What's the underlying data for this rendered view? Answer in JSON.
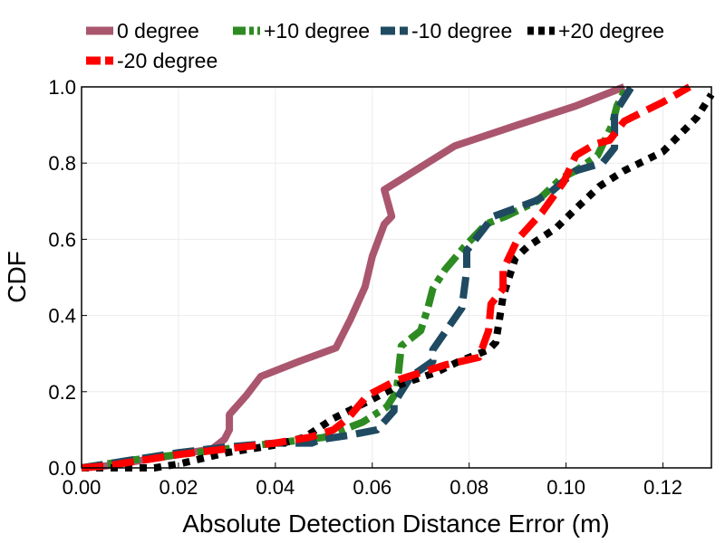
{
  "chart_data": {
    "type": "line",
    "title": "",
    "xlabel": "Absolute Detection Distance Error (m)",
    "ylabel": "CDF",
    "xlim": [
      0.0,
      0.13
    ],
    "ylim": [
      0.0,
      1.0
    ],
    "xticks": [
      "0.00",
      "0.02",
      "0.04",
      "0.06",
      "0.08",
      "0.10",
      "0.12"
    ],
    "yticks": [
      "0.0",
      "0.2",
      "0.4",
      "0.6",
      "0.8",
      "1.0"
    ],
    "grid": true,
    "legend_position": "top",
    "series": [
      {
        "name": "0 degree",
        "color": "#AA566E",
        "style": "solid",
        "x": [
          0.0,
          0.005,
          0.01,
          0.015,
          0.02,
          0.027,
          0.0295,
          0.0305,
          0.0305,
          0.034,
          0.037,
          0.045,
          0.0525,
          0.0555,
          0.0585,
          0.06,
          0.0625,
          0.064,
          0.0625,
          0.077,
          0.09,
          0.102,
          0.112
        ],
        "y": [
          0.0,
          0.005,
          0.015,
          0.025,
          0.035,
          0.05,
          0.075,
          0.1,
          0.14,
          0.19,
          0.24,
          0.28,
          0.315,
          0.39,
          0.475,
          0.555,
          0.64,
          0.66,
          0.73,
          0.845,
          0.9,
          0.95,
          1.0
        ]
      },
      {
        "name": "+10 degree",
        "color": "#2E8B22",
        "style": "dashdot",
        "x": [
          0.0,
          0.005,
          0.01,
          0.02,
          0.03,
          0.04,
          0.05,
          0.058,
          0.063,
          0.065,
          0.066,
          0.07,
          0.0715,
          0.0725,
          0.075,
          0.079,
          0.0835,
          0.0875,
          0.094,
          0.099,
          0.102,
          0.1065,
          0.1095,
          0.1105,
          0.1125
        ],
        "y": [
          0.0,
          0.01,
          0.02,
          0.035,
          0.05,
          0.065,
          0.08,
          0.12,
          0.16,
          0.2,
          0.32,
          0.36,
          0.42,
          0.47,
          0.52,
          0.58,
          0.64,
          0.66,
          0.7,
          0.76,
          0.78,
          0.82,
          0.9,
          0.95,
          1.0
        ]
      },
      {
        "name": "-10 degree",
        "color": "#1F4A61",
        "style": "dashed",
        "x": [
          0.0,
          0.005,
          0.01,
          0.02,
          0.03,
          0.04,
          0.0475,
          0.0495,
          0.055,
          0.061,
          0.0645,
          0.0645,
          0.068,
          0.0725,
          0.0725,
          0.0785,
          0.0795,
          0.0795,
          0.085,
          0.0935,
          0.0965,
          0.102,
          0.1075,
          0.11,
          0.11,
          0.1135
        ],
        "y": [
          0.0,
          0.01,
          0.02,
          0.04,
          0.055,
          0.065,
          0.065,
          0.075,
          0.085,
          0.1,
          0.15,
          0.17,
          0.24,
          0.28,
          0.31,
          0.42,
          0.52,
          0.57,
          0.66,
          0.7,
          0.72,
          0.78,
          0.8,
          0.84,
          0.93,
          1.0
        ]
      },
      {
        "name": "+20 degree",
        "color": "#000000",
        "style": "dotted",
        "x": [
          0.0,
          0.005,
          0.01,
          0.015,
          0.02,
          0.03,
          0.04,
          0.046,
          0.052,
          0.06,
          0.066,
          0.073,
          0.078,
          0.084,
          0.0855,
          0.087,
          0.0895,
          0.092,
          0.098,
          0.102,
          0.107,
          0.112,
          0.12,
          0.127,
          0.13
        ],
        "y": [
          0.0,
          0.0,
          0.0,
          0.0,
          0.01,
          0.04,
          0.06,
          0.08,
          0.13,
          0.18,
          0.22,
          0.25,
          0.28,
          0.31,
          0.33,
          0.45,
          0.55,
          0.58,
          0.63,
          0.68,
          0.74,
          0.78,
          0.83,
          0.92,
          0.98
        ]
      },
      {
        "name": "-20 degree",
        "color": "#FF0000",
        "style": "dashed",
        "x": [
          0.0,
          0.005,
          0.01,
          0.02,
          0.03,
          0.04,
          0.047,
          0.052,
          0.055,
          0.059,
          0.065,
          0.075,
          0.082,
          0.084,
          0.0845,
          0.087,
          0.087,
          0.09,
          0.095,
          0.0995,
          0.102,
          0.106,
          0.109,
          0.112,
          0.12,
          0.1255
        ],
        "y": [
          0.0,
          0.005,
          0.015,
          0.035,
          0.05,
          0.065,
          0.08,
          0.1,
          0.13,
          0.19,
          0.23,
          0.27,
          0.29,
          0.36,
          0.43,
          0.47,
          0.52,
          0.6,
          0.67,
          0.75,
          0.82,
          0.85,
          0.86,
          0.91,
          0.96,
          1.0
        ]
      }
    ]
  }
}
